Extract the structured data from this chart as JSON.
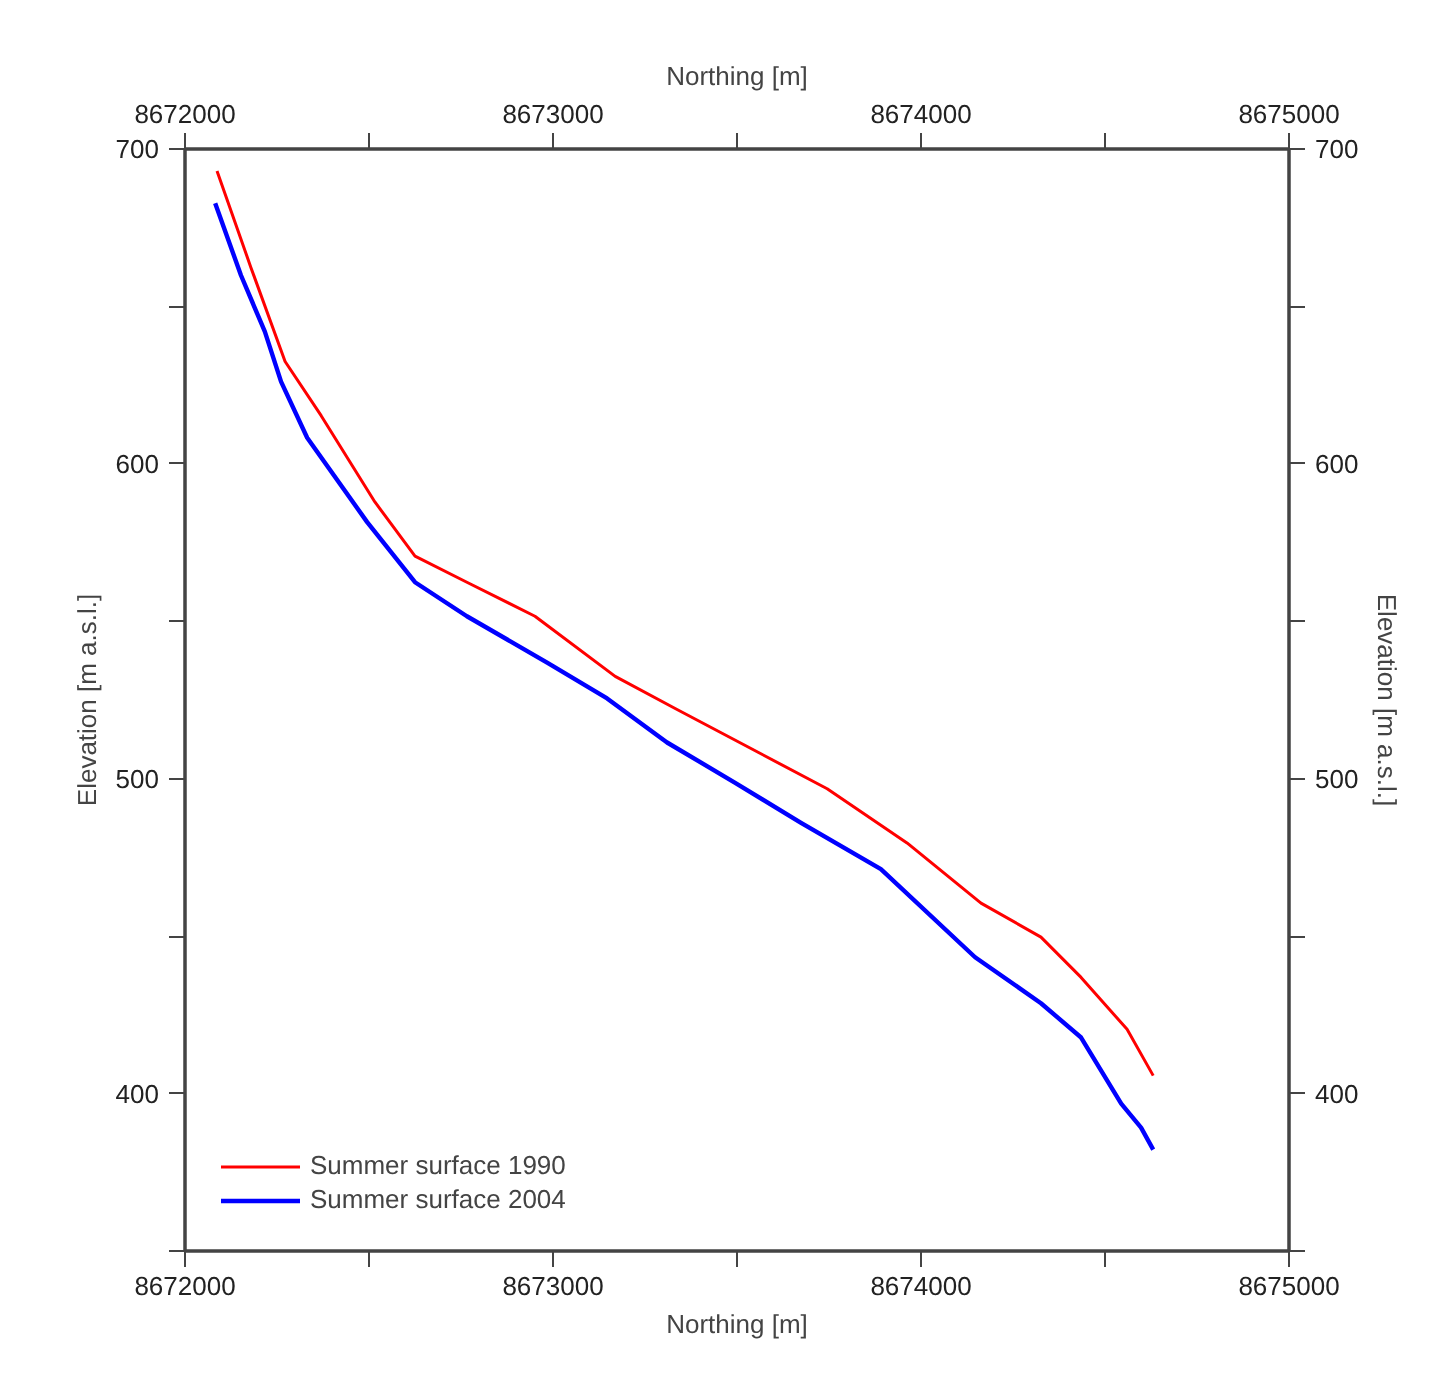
{
  "chart_data": {
    "type": "line",
    "xlabel": "Northing [m]",
    "x2label": "Northing [m]",
    "ylabel": "Elevation [m a.s.l.]",
    "y2label": "Elevation [m a.s.l.]",
    "xlim": [
      8672000,
      8675000
    ],
    "xticks": [
      8672000,
      {
        "value": 8672500,
        "label": null
      },
      8673000,
      {
        "value": 8673500,
        "label": null
      },
      8674000,
      {
        "value": 8674500,
        "label": null
      },
      8675000
    ],
    "x2lim": [
      8672000,
      8675000
    ],
    "x2ticks": [
      8672000,
      {
        "value": 8672500,
        "label": null
      },
      8673000,
      {
        "value": 8673500,
        "label": null
      },
      8674000,
      {
        "value": 8674500,
        "label": null
      },
      8675000
    ],
    "ylim": [
      350,
      700
    ],
    "yticks": [
      {
        "value": 350,
        "label": null
      },
      400,
      {
        "value": 450,
        "label": null
      },
      500,
      {
        "value": 550,
        "label": null
      },
      600,
      {
        "value": 650,
        "label": null
      },
      700
    ],
    "y2lim": [
      350,
      700
    ],
    "y2ticks": [
      {
        "value": 350,
        "label": null
      },
      400,
      {
        "value": 450,
        "label": null
      },
      500,
      {
        "value": 550,
        "label": null
      },
      600,
      {
        "value": 650,
        "label": null
      },
      700
    ],
    "grid": false,
    "legend": "bottom left",
    "line_style": "solid",
    "marker": "none",
    "series": [
      {
        "name": "Summer surface 1990",
        "color": "#ff0000",
        "x": [
          8672087,
          8672179,
          8672272,
          8672370,
          8672516,
          8672625,
          8672766,
          8672951,
          8673169,
          8673332,
          8673745,
          8673962,
          8674163,
          8674326,
          8674435,
          8674560,
          8674631
        ],
        "values": [
          693.0,
          662.4,
          632.5,
          615.3,
          587.9,
          570.7,
          562.4,
          551.6,
          532.5,
          522.3,
          496.8,
          479.6,
          460.5,
          449.7,
          436.9,
          420.4,
          405.7
        ]
      },
      {
        "name": "Summer surface 2004",
        "color": "#0000ff",
        "x": [
          8672082,
          8672152,
          8672217,
          8672261,
          8672332,
          8672495,
          8672625,
          8672766,
          8672984,
          8673147,
          8673310,
          8673495,
          8673674,
          8673891,
          8674147,
          8674326,
          8674435,
          8674544,
          8674598,
          8674631
        ],
        "values": [
          682.8,
          659.9,
          642.0,
          626.1,
          608.3,
          581.5,
          562.4,
          551.6,
          536.9,
          525.5,
          511.5,
          498.7,
          486.0,
          471.3,
          443.3,
          428.7,
          417.8,
          396.8,
          389.2,
          382.2
        ]
      }
    ]
  }
}
